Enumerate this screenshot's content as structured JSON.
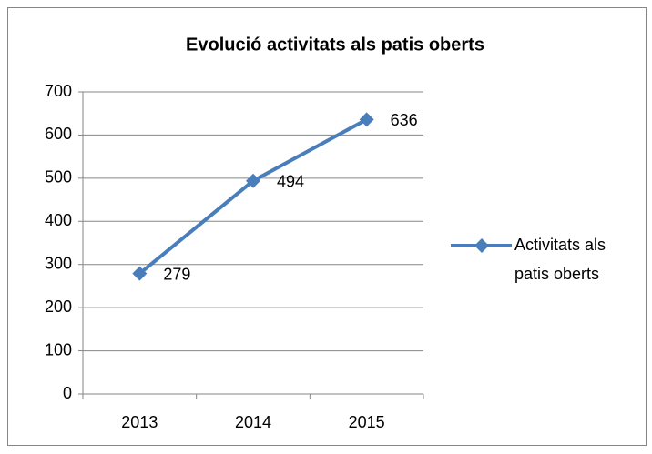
{
  "chart_data": {
    "type": "line",
    "title": "Evolució activitats als patis oberts",
    "categories": [
      "2013",
      "2014",
      "2015"
    ],
    "series": [
      {
        "name": "Activitats als patis oberts",
        "color": "#4a7ebb",
        "values": [
          279,
          494,
          636
        ]
      }
    ],
    "ylim": [
      0,
      700
    ],
    "yticks": [
      0,
      100,
      200,
      300,
      400,
      500,
      600,
      700
    ],
    "grid": true,
    "legend": "right"
  }
}
